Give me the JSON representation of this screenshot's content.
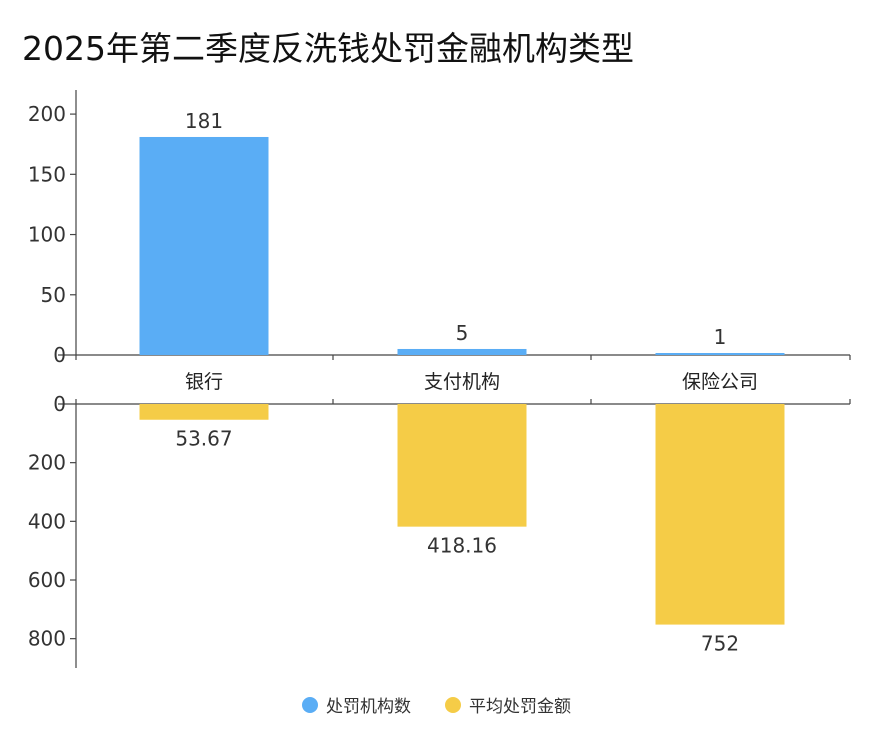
{
  "chart_data": {
    "type": "bar",
    "title": "2025年第二季度反洗钱处罚金融机构类型",
    "categories": [
      "银行",
      "支付机构",
      "保险公司"
    ],
    "series": [
      {
        "name": "处罚机构数",
        "color": "#5aadf5",
        "values": [
          181,
          5,
          1
        ],
        "value_labels": [
          "181",
          "5",
          "1"
        ],
        "axis_ticks": [
          "0",
          "50",
          "100",
          "150",
          "200"
        ],
        "ylim": [
          0,
          220
        ]
      },
      {
        "name": "平均处罚金额",
        "color": "#f5cc47",
        "values": [
          53.67,
          418.16,
          752
        ],
        "value_labels": [
          "53.67",
          "418.16",
          "752"
        ],
        "axis_ticks": [
          "0",
          "200",
          "400",
          "600",
          "800"
        ],
        "ylim": [
          0,
          900
        ],
        "inverted": true
      }
    ],
    "legend": "bottom-center",
    "grid": false
  }
}
